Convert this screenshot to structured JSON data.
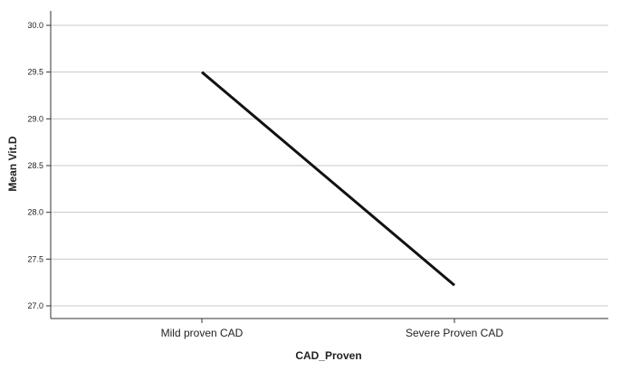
{
  "chart_data": {
    "type": "line",
    "title": "",
    "xlabel": "CAD_Proven",
    "ylabel": "Mean Vit.D",
    "categories": [
      "Mild proven CAD",
      "Severe Proven CAD"
    ],
    "series": [
      {
        "values": [
          29.5,
          27.22
        ]
      }
    ],
    "ylim": [
      27.0,
      30.0
    ],
    "yticks": [
      27.0,
      27.5,
      28.0,
      28.5,
      29.0,
      29.5,
      30.0
    ],
    "ytick_labels": [
      "27.0",
      "27.5",
      "28.0",
      "28.5",
      "29.0",
      "29.5",
      "30.0"
    ],
    "grid": true,
    "line_color": "#111111",
    "grid_color": "#c8c8c8"
  }
}
